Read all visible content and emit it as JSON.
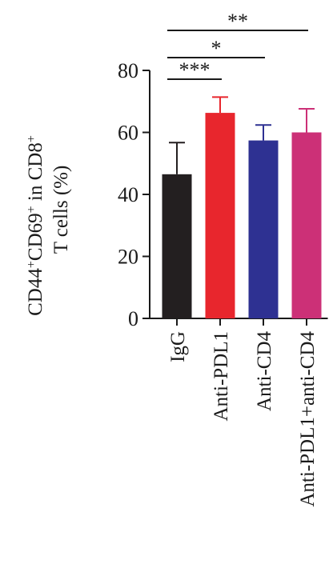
{
  "chart_data": {
    "type": "bar",
    "categories": [
      "IgG",
      "Anti-PDL1",
      "Anti-CD4",
      "Anti-PDL1+anti-CD4"
    ],
    "values": [
      46.5,
      66.3,
      57.4,
      60.0
    ],
    "errors": [
      10.2,
      5.1,
      5.0,
      7.6
    ],
    "colors": [
      "#231f20",
      "#e8262d",
      "#2e3192",
      "#cc3077"
    ],
    "ylabel_line1": "CD44+CD69+ in CD8+",
    "ylabel_line2": "T cells (%)",
    "ylim": [
      0,
      80
    ],
    "yticks": [
      "0",
      "20",
      "40",
      "60",
      "80"
    ],
    "significance": [
      {
        "from": "IgG",
        "to": "Anti-PDL1",
        "label": "***"
      },
      {
        "from": "IgG",
        "to": "Anti-CD4",
        "label": "*"
      },
      {
        "from": "IgG",
        "to": "Anti-PDL1+anti-CD4",
        "label": "**"
      }
    ]
  }
}
